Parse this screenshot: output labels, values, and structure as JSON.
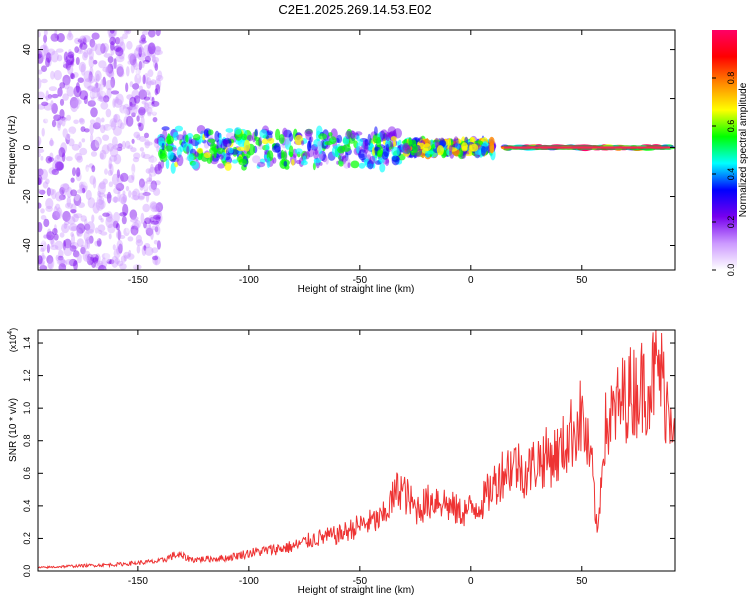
{
  "title": "C2E1.2025.269.14.53.E02",
  "colors": {
    "snr_line": "#ee3333",
    "axis": "#000000",
    "background": "#ffffff"
  },
  "chart_data": [
    {
      "type": "heatmap",
      "xlabel": "Height of straight line (km)",
      "ylabel": "Frequency (Hz)",
      "xlim": [
        -195,
        92
      ],
      "ylim": [
        -50,
        48
      ],
      "xticks": [
        -150,
        -100,
        -50,
        0,
        50
      ],
      "xtick_labels": [
        "-150",
        "-100",
        "-50",
        "0",
        "50"
      ],
      "yticks": [
        -40,
        -20,
        0,
        20,
        40
      ],
      "ytick_labels": [
        "-40",
        "-20",
        "0",
        "20",
        "40"
      ],
      "colorbar": {
        "label": "Normalized spectral amplitude",
        "range": [
          0,
          1
        ],
        "ticks": [
          0.0,
          0.2,
          0.4,
          0.6,
          0.8
        ],
        "tick_labels": [
          "0.0",
          "0.2",
          "0.4",
          "0.6",
          "0.8"
        ],
        "colormap": [
          "#ffffff",
          "#cc99ff",
          "#7700ee",
          "#0000ff",
          "#00ffff",
          "#00ff00",
          "#ffff00",
          "#ff8800",
          "#ff0000",
          "#ff0066"
        ]
      },
      "features": [
        {
          "x_range": [
            -195,
            -140
          ],
          "freq_range": [
            -50,
            48
          ],
          "amplitude": 0.15
        },
        {
          "x_range": [
            -140,
            -30
          ],
          "freq_range": [
            -9,
            8
          ],
          "amplitude": 0.45
        },
        {
          "x_range": [
            -30,
            10
          ],
          "freq_range": [
            -3,
            3
          ],
          "amplitude": 0.55
        },
        {
          "x_range": [
            15,
            90
          ],
          "freq_range": [
            -1,
            1
          ],
          "amplitude": 0.95
        }
      ]
    },
    {
      "type": "line",
      "xlabel": "Height of straight line (km)",
      "ylabel": "SNR (10 * v/v)",
      "y_multiplier_label": "(x10",
      "y_multiplier_exp": "4",
      "y_multiplier_close": ")",
      "xlim": [
        -195,
        92
      ],
      "ylim": [
        0,
        1.48
      ],
      "xticks": [
        -150,
        -100,
        -50,
        0,
        50
      ],
      "xtick_labels": [
        "-150",
        "-100",
        "-50",
        "0",
        "50"
      ],
      "yticks": [
        0.0,
        0.2,
        0.4,
        0.6,
        0.8,
        1.0,
        1.2,
        1.4
      ],
      "ytick_labels": [
        "0.0",
        "0.2",
        "0.4",
        "0.6",
        "0.8",
        "1.0",
        "1.2",
        "1.4"
      ],
      "series": [
        {
          "name": "SNR",
          "x": [
            -195,
            -180,
            -160,
            -150,
            -140,
            -133,
            -125,
            -110,
            -100,
            -90,
            -80,
            -70,
            -60,
            -50,
            -40,
            -32,
            -25,
            -15,
            -10,
            -5,
            0,
            5,
            10,
            15,
            20,
            25,
            30,
            35,
            40,
            45,
            50,
            55,
            57,
            60,
            65,
            70,
            75,
            80,
            85,
            88,
            92
          ],
          "y": [
            0.02,
            0.03,
            0.04,
            0.05,
            0.06,
            0.1,
            0.07,
            0.08,
            0.11,
            0.13,
            0.15,
            0.2,
            0.22,
            0.28,
            0.32,
            0.52,
            0.38,
            0.45,
            0.4,
            0.36,
            0.38,
            0.42,
            0.52,
            0.62,
            0.66,
            0.6,
            0.68,
            0.7,
            0.72,
            0.84,
            0.95,
            0.58,
            0.2,
            0.85,
            0.98,
            1.08,
            1.12,
            1.15,
            1.25,
            1.05,
            0.98
          ]
        }
      ]
    }
  ]
}
